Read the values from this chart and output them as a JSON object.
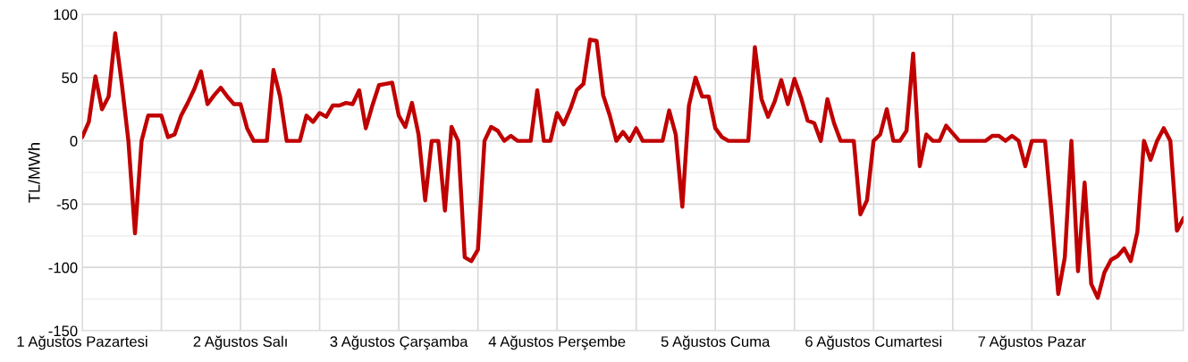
{
  "chart_data": {
    "type": "line",
    "ylabel": "TL/MWh",
    "categories": [
      "1 Ağustos Pazartesi",
      null,
      null,
      null,
      null,
      null,
      null,
      null,
      null,
      null,
      null,
      null,
      null,
      null,
      null,
      null,
      null,
      null,
      null,
      null,
      null,
      null,
      null,
      null,
      "2 Ağustos Salı",
      null,
      null,
      null,
      null,
      null,
      null,
      null,
      null,
      null,
      null,
      null,
      null,
      null,
      null,
      null,
      null,
      null,
      null,
      null,
      null,
      null,
      null,
      null,
      "3 Ağustos Çarşamba",
      null,
      null,
      null,
      null,
      null,
      null,
      null,
      null,
      null,
      null,
      null,
      null,
      null,
      null,
      null,
      null,
      null,
      null,
      null,
      null,
      null,
      null,
      null,
      "4 Ağustos Perşembe",
      null,
      null,
      null,
      null,
      null,
      null,
      null,
      null,
      null,
      null,
      null,
      null,
      null,
      null,
      null,
      null,
      null,
      null,
      null,
      null,
      null,
      null,
      null,
      "5 Ağustos Cuma",
      null,
      null,
      null,
      null,
      null,
      null,
      null,
      null,
      null,
      null,
      null,
      null,
      null,
      null,
      null,
      null,
      null,
      null,
      null,
      null,
      null,
      null,
      null,
      "6 Ağustos Cumartesi",
      null,
      null,
      null,
      null,
      null,
      null,
      null,
      null,
      null,
      null,
      null,
      null,
      null,
      null,
      null,
      null,
      null,
      null,
      null,
      null,
      null,
      null,
      null,
      "7 Ağustos Pazar",
      null,
      null,
      null,
      null,
      null,
      null,
      null,
      null,
      null,
      null,
      null,
      null,
      null,
      null,
      null,
      null,
      null,
      null,
      null,
      null,
      null,
      null,
      null
    ],
    "series": [
      {
        "color": "#c00000",
        "values": [
          3,
          15,
          51,
          25,
          35,
          85,
          45,
          0,
          -73,
          0,
          20,
          20,
          20,
          3,
          5,
          20,
          30,
          41,
          55,
          29,
          36,
          42,
          35,
          29,
          29,
          10,
          0,
          0,
          0,
          56,
          35,
          0,
          0,
          0,
          20,
          15,
          22,
          19,
          28,
          28,
          30,
          29,
          40,
          10,
          28,
          44,
          45,
          46,
          20,
          11,
          30,
          5,
          -47,
          0,
          0,
          -55,
          11,
          0,
          -92,
          -95,
          -86,
          0,
          11,
          8,
          0,
          4,
          0,
          0,
          0,
          40,
          0,
          0,
          22,
          13,
          25,
          40,
          45,
          80,
          79,
          36,
          20,
          0,
          7,
          0,
          10,
          0,
          0,
          0,
          0,
          24,
          5,
          -52,
          28,
          50,
          35,
          35,
          10,
          3,
          0,
          0,
          0,
          0,
          74,
          33,
          19,
          31,
          48,
          29,
          49,
          34,
          16,
          14,
          0,
          33,
          14,
          0,
          0,
          0,
          -58,
          -47,
          0,
          5,
          25,
          0,
          0,
          8,
          69,
          -20,
          5,
          0,
          0,
          12,
          6,
          0,
          0,
          0,
          0,
          0,
          4,
          4,
          0,
          4,
          0,
          -20,
          0,
          0,
          0,
          -58,
          -121,
          -92,
          0,
          -103,
          -33,
          -113,
          -124,
          -104,
          -94,
          -91,
          -85,
          -95,
          -72,
          0,
          -15,
          0,
          10,
          0,
          -71,
          -61
        ]
      }
    ],
    "ylim": [
      -150,
      100
    ],
    "yticks": [
      -150,
      -100,
      -50,
      0,
      50,
      100
    ],
    "grid": true,
    "marker": "none",
    "line_style": "solid"
  }
}
